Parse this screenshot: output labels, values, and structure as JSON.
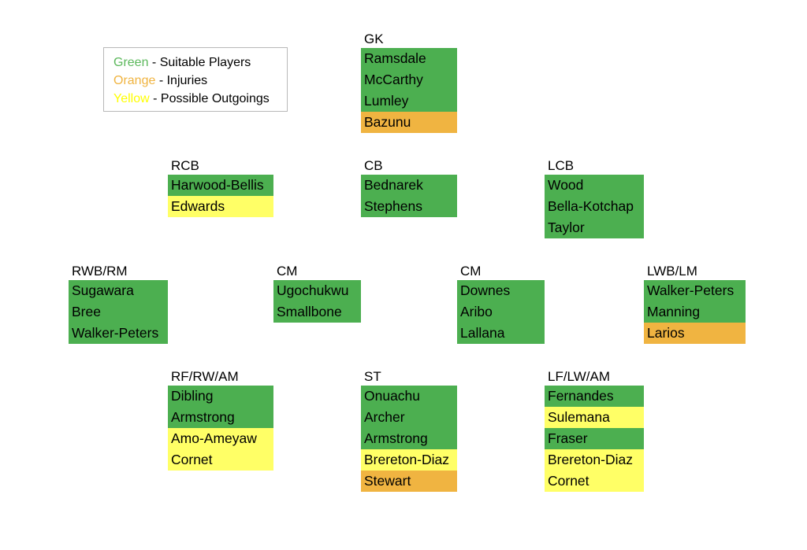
{
  "colors": {
    "green": "#4caf50",
    "orange": "#f0b441",
    "yellow": "#ffff66",
    "green_text": "#5cb85c",
    "orange_text": "#f0b441",
    "yellow_text": "#ffff00"
  },
  "legend": {
    "rows": [
      {
        "word": "Green",
        "desc": " - Suitable Players",
        "color": "green_text"
      },
      {
        "word": "Orange",
        "desc": " - Injuries",
        "color": "orange_text"
      },
      {
        "word": "Yellow",
        "desc": " - Possible Outgoings",
        "color": "yellow_text"
      }
    ]
  },
  "positions": [
    {
      "label": "GK",
      "players": [
        {
          "name": "Ramsdale",
          "status": "green"
        },
        {
          "name": "McCarthy",
          "status": "green"
        },
        {
          "name": "Lumley",
          "status": "green"
        },
        {
          "name": "Bazunu",
          "status": "orange"
        }
      ]
    },
    {
      "label": "RCB",
      "players": [
        {
          "name": "Harwood-Bellis",
          "status": "green"
        },
        {
          "name": "Edwards",
          "status": "yellow"
        }
      ]
    },
    {
      "label": "CB",
      "players": [
        {
          "name": "Bednarek",
          "status": "green"
        },
        {
          "name": "Stephens",
          "status": "green"
        }
      ]
    },
    {
      "label": "LCB",
      "players": [
        {
          "name": "Wood",
          "status": "green"
        },
        {
          "name": "Bella-Kotchap",
          "status": "green"
        },
        {
          "name": "Taylor",
          "status": "green"
        }
      ]
    },
    {
      "label": "RWB/RM",
      "players": [
        {
          "name": "Sugawara",
          "status": "green"
        },
        {
          "name": "Bree",
          "status": "green"
        },
        {
          "name": "Walker-Peters",
          "status": "green"
        }
      ]
    },
    {
      "label": "CM",
      "players": [
        {
          "name": "Ugochukwu",
          "status": "green"
        },
        {
          "name": "Smallbone",
          "status": "green"
        }
      ]
    },
    {
      "label": "CM",
      "players": [
        {
          "name": "Downes",
          "status": "green"
        },
        {
          "name": "Aribo",
          "status": "green"
        },
        {
          "name": "Lallana",
          "status": "green"
        }
      ]
    },
    {
      "label": "LWB/LM",
      "players": [
        {
          "name": "Walker-Peters",
          "status": "green"
        },
        {
          "name": "Manning",
          "status": "green"
        },
        {
          "name": "Larios",
          "status": "orange"
        }
      ]
    },
    {
      "label": "RF/RW/AM",
      "players": [
        {
          "name": "Dibling",
          "status": "green"
        },
        {
          "name": "Armstrong",
          "status": "green"
        },
        {
          "name": "Amo-Ameyaw",
          "status": "yellow"
        },
        {
          "name": "Cornet",
          "status": "yellow"
        }
      ]
    },
    {
      "label": "ST",
      "players": [
        {
          "name": "Onuachu",
          "status": "green"
        },
        {
          "name": "Archer",
          "status": "green"
        },
        {
          "name": "Armstrong",
          "status": "green"
        },
        {
          "name": "Brereton-Diaz",
          "status": "yellow"
        },
        {
          "name": "Stewart",
          "status": "orange"
        }
      ]
    },
    {
      "label": "LF/LW/AM",
      "players": [
        {
          "name": "Fernandes",
          "status": "green"
        },
        {
          "name": "Sulemana",
          "status": "yellow"
        },
        {
          "name": "Fraser",
          "status": "green"
        },
        {
          "name": "Brereton-Diaz",
          "status": "yellow"
        },
        {
          "name": "Cornet",
          "status": "yellow"
        }
      ]
    }
  ]
}
